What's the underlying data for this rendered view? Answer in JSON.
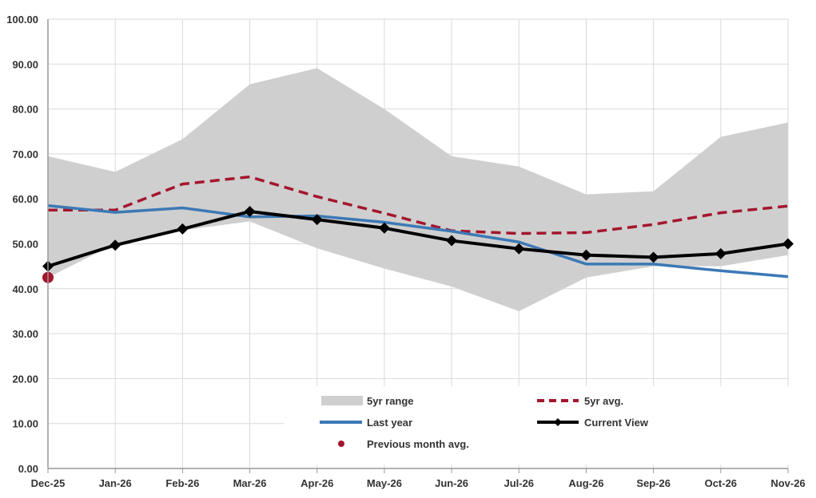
{
  "chart_data": {
    "type": "line",
    "title": "",
    "xlabel": "",
    "ylabel": "",
    "ylim": [
      0,
      100
    ],
    "ytick_step": 10,
    "grid": true,
    "legend_position": "bottom-right-inside",
    "categories": [
      "Dec-25",
      "Jan-26",
      "Feb-26",
      "Mar-26",
      "Apr-26",
      "May-26",
      "Jun-26",
      "Jul-26",
      "Aug-26",
      "Sep-26",
      "Oct-26",
      "Nov-26"
    ],
    "range": {
      "name": "5yr range",
      "color": "#d0cfcf",
      "upper": [
        69.5,
        66.0,
        73.3,
        85.5,
        89.1,
        80.0,
        69.5,
        67.2,
        61.0,
        61.7,
        73.8,
        77.0
      ],
      "lower": [
        42.5,
        50.0,
        53.0,
        55.0,
        49.0,
        44.5,
        40.5,
        35.0,
        42.5,
        45.0,
        45.0,
        47.5
      ]
    },
    "series": [
      {
        "name": "5yr avg.",
        "color": "#a3162e",
        "style": "dashed",
        "values": [
          57.5,
          57.5,
          63.3,
          64.9,
          60.5,
          56.8,
          52.9,
          52.3,
          52.5,
          54.3,
          56.9,
          58.4
        ]
      },
      {
        "name": "Last year",
        "color": "#3c79b5",
        "style": "solid",
        "values": [
          58.5,
          57.0,
          58.0,
          56.0,
          56.2,
          54.8,
          52.8,
          50.4,
          45.5,
          45.5,
          44.0,
          42.7
        ]
      },
      {
        "name": "Current View",
        "color": "#000000",
        "style": "solid-diamond",
        "values": [
          45.0,
          49.7,
          53.3,
          57.2,
          55.4,
          53.5,
          50.7,
          48.9,
          47.5,
          47.0,
          47.8,
          50.0
        ]
      }
    ],
    "previous_month_avg": {
      "name": "Previous month avg.",
      "color": "#a3162e",
      "category": "Dec-25",
      "value": 42.5
    }
  }
}
